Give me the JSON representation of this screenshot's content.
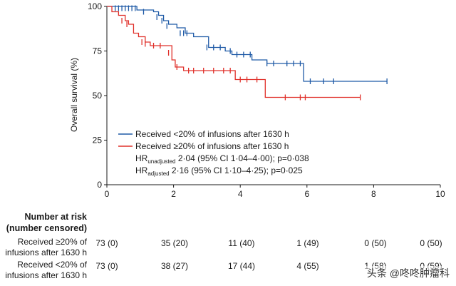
{
  "chart_data": {
    "type": "line",
    "subtype": "kaplan-meier",
    "xlabel": "",
    "ylabel": "Overall survival (%)",
    "xlim": [
      0,
      10
    ],
    "ylim": [
      0,
      100
    ],
    "xticks": [
      0,
      2,
      4,
      6,
      8,
      10
    ],
    "yticks": [
      0,
      25,
      50,
      75,
      100
    ],
    "series": [
      {
        "name": "Received <20% of infusions after 1630 h",
        "color": "#1f5aa6",
        "steps": [
          [
            0,
            100
          ],
          [
            0.9,
            98
          ],
          [
            1.4,
            97
          ],
          [
            1.55,
            95
          ],
          [
            1.7,
            92
          ],
          [
            1.85,
            90
          ],
          [
            2.1,
            88
          ],
          [
            2.35,
            85
          ],
          [
            2.6,
            83
          ],
          [
            3.05,
            77
          ],
          [
            3.55,
            75
          ],
          [
            3.75,
            73
          ],
          [
            4.35,
            70
          ],
          [
            4.8,
            68
          ],
          [
            5.9,
            58
          ],
          [
            8.4,
            58
          ]
        ],
        "censored": [
          [
            0.25,
            99
          ],
          [
            0.35,
            99
          ],
          [
            0.45,
            99
          ],
          [
            0.55,
            99
          ],
          [
            0.65,
            99
          ],
          [
            0.75,
            99
          ],
          [
            0.85,
            99
          ],
          [
            1.1,
            97
          ],
          [
            1.5,
            94
          ],
          [
            1.65,
            92
          ],
          [
            1.8,
            89
          ],
          [
            2.2,
            85
          ],
          [
            2.3,
            85
          ],
          [
            2.4,
            85
          ],
          [
            3.0,
            77
          ],
          [
            3.2,
            77
          ],
          [
            3.4,
            77
          ],
          [
            3.7,
            75
          ],
          [
            3.9,
            73
          ],
          [
            4.1,
            73
          ],
          [
            4.3,
            73
          ],
          [
            4.8,
            68
          ],
          [
            5.0,
            68
          ],
          [
            5.4,
            68
          ],
          [
            5.6,
            68
          ],
          [
            5.8,
            68
          ],
          [
            6.1,
            58
          ],
          [
            6.5,
            58
          ],
          [
            6.8,
            58
          ],
          [
            8.4,
            58
          ]
        ]
      },
      {
        "name": "Received ≥20% of infusions after 1630 h",
        "color": "#e0302a",
        "steps": [
          [
            0,
            100
          ],
          [
            0.15,
            97
          ],
          [
            0.35,
            95
          ],
          [
            0.55,
            92
          ],
          [
            0.65,
            90
          ],
          [
            0.8,
            85
          ],
          [
            0.95,
            83
          ],
          [
            1.15,
            80
          ],
          [
            1.3,
            78
          ],
          [
            1.95,
            70
          ],
          [
            2.05,
            66
          ],
          [
            2.3,
            64
          ],
          [
            3.85,
            59
          ],
          [
            4.75,
            49
          ],
          [
            7.6,
            49
          ]
        ],
        "censored": [
          [
            0.45,
            92
          ],
          [
            0.6,
            90
          ],
          [
            1.05,
            80
          ],
          [
            1.15,
            79
          ],
          [
            1.4,
            78
          ],
          [
            1.6,
            78
          ],
          [
            1.85,
            74
          ],
          [
            2.1,
            66
          ],
          [
            2.45,
            64
          ],
          [
            2.6,
            64
          ],
          [
            2.9,
            64
          ],
          [
            3.2,
            64
          ],
          [
            3.5,
            64
          ],
          [
            3.7,
            64
          ],
          [
            4.0,
            59
          ],
          [
            4.2,
            59
          ],
          [
            4.5,
            59
          ],
          [
            5.35,
            49
          ],
          [
            5.8,
            49
          ],
          [
            5.95,
            49
          ],
          [
            7.6,
            49
          ]
        ]
      }
    ],
    "annotations": {
      "hr_unadjusted": {
        "prefix": "HR",
        "sub": "unadjusted",
        "text": " 2·04 (95% CI 1·04–4·00); p=0·038"
      },
      "hr_adjusted": {
        "prefix": "HR",
        "sub": "adjusted",
        "text": " 2·16 (95% CI 1·10–4·25); p=0·025"
      }
    }
  },
  "risk_table": {
    "title_line1": "Number at risk",
    "title_line2": "(number censored)",
    "rows": [
      {
        "label_line1": "Received ≥20% of",
        "label_line2": "infusions after 1630 h",
        "values": [
          "73 (0)",
          "35 (20)",
          "11 (40)",
          "1 (49)",
          "0 (50)",
          "0 (50)"
        ]
      },
      {
        "label_line1": "Received <20% of",
        "label_line2": "infusions after 1630 h",
        "values": [
          "73 (0)",
          "38 (27)",
          "17 (44)",
          "4 (55)",
          "1 (58)",
          "0 (59)"
        ]
      }
    ]
  },
  "watermark": "头条 @咚咚肿瘤科"
}
